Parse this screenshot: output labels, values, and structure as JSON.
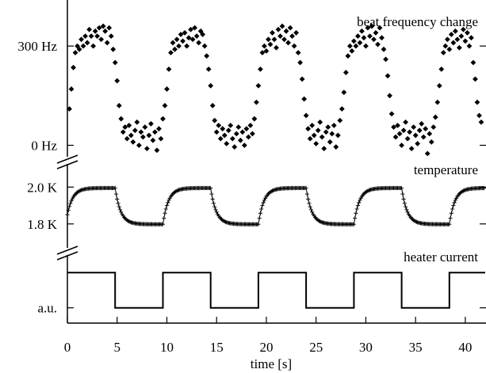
{
  "chart_data": {
    "type": "scatter",
    "xlabel": "time [s]",
    "xlim": [
      0,
      42
    ],
    "x_ticks": [
      0,
      5,
      10,
      15,
      20,
      25,
      30,
      35,
      40
    ],
    "x_tick_labels": [
      "0",
      "5",
      "10",
      "15",
      "20",
      "25",
      "30",
      "35",
      "40"
    ],
    "panels": [
      {
        "label": "beat frequency change",
        "unit": "Hz",
        "marker": "diamond",
        "ylim": [
          -30,
          420
        ],
        "y_ticks": [
          0,
          300
        ],
        "y_tick_labels": [
          "0 Hz",
          "300 Hz"
        ],
        "points": [
          [
            0.2,
            110
          ],
          [
            0.4,
            170
          ],
          [
            0.6,
            235
          ],
          [
            0.8,
            280
          ],
          [
            1.0,
            300
          ],
          [
            1.2,
            290
          ],
          [
            1.4,
            320
          ],
          [
            1.6,
            300
          ],
          [
            1.8,
            330
          ],
          [
            2.0,
            310
          ],
          [
            2.2,
            350
          ],
          [
            2.4,
            330
          ],
          [
            2.6,
            300
          ],
          [
            2.8,
            345
          ],
          [
            3.0,
            330
          ],
          [
            3.2,
            355
          ],
          [
            3.4,
            320
          ],
          [
            3.6,
            360
          ],
          [
            3.8,
            345
          ],
          [
            4.0,
            310
          ],
          [
            4.2,
            355
          ],
          [
            4.4,
            330
          ],
          [
            4.6,
            290
          ],
          [
            4.8,
            250
          ],
          [
            5.0,
            195
          ],
          [
            5.2,
            120
          ],
          [
            5.4,
            80
          ],
          [
            5.6,
            40
          ],
          [
            5.8,
            55
          ],
          [
            6.0,
            20
          ],
          [
            6.2,
            60
          ],
          [
            6.4,
            30
          ],
          [
            6.6,
            10
          ],
          [
            6.8,
            45
          ],
          [
            7.0,
            70
          ],
          [
            7.2,
            0
          ],
          [
            7.4,
            40
          ],
          [
            7.6,
            25
          ],
          [
            7.8,
            55
          ],
          [
            8.0,
            -10
          ],
          [
            8.2,
            30
          ],
          [
            8.4,
            65
          ],
          [
            8.6,
            15
          ],
          [
            8.8,
            40
          ],
          [
            9.0,
            -15
          ],
          [
            9.2,
            50
          ],
          [
            9.4,
            20
          ],
          [
            9.6,
            80
          ],
          [
            9.8,
            120
          ],
          [
            10.0,
            170
          ],
          [
            10.2,
            230
          ],
          [
            10.4,
            280
          ],
          [
            10.6,
            310
          ],
          [
            10.8,
            290
          ],
          [
            11.0,
            320
          ],
          [
            11.2,
            300
          ],
          [
            11.4,
            335
          ],
          [
            11.6,
            315
          ],
          [
            11.8,
            340
          ],
          [
            12.0,
            300
          ],
          [
            12.2,
            325
          ],
          [
            12.4,
            350
          ],
          [
            12.6,
            320
          ],
          [
            12.8,
            355
          ],
          [
            13.0,
            330
          ],
          [
            13.2,
            310
          ],
          [
            13.4,
            345
          ],
          [
            13.6,
            335
          ],
          [
            13.8,
            300
          ],
          [
            14.0,
            270
          ],
          [
            14.2,
            230
          ],
          [
            14.4,
            180
          ],
          [
            14.6,
            120
          ],
          [
            14.8,
            75
          ],
          [
            15.0,
            40
          ],
          [
            15.2,
            60
          ],
          [
            15.4,
            20
          ],
          [
            15.6,
            50
          ],
          [
            15.8,
            30
          ],
          [
            16.0,
            5
          ],
          [
            16.2,
            45
          ],
          [
            16.4,
            60
          ],
          [
            16.6,
            20
          ],
          [
            16.8,
            -5
          ],
          [
            17.0,
            35
          ],
          [
            17.2,
            55
          ],
          [
            17.4,
            15
          ],
          [
            17.6,
            40
          ],
          [
            17.8,
            0
          ],
          [
            18.0,
            50
          ],
          [
            18.2,
            25
          ],
          [
            18.4,
            60
          ],
          [
            18.6,
            35
          ],
          [
            18.8,
            80
          ],
          [
            19.0,
            130
          ],
          [
            19.2,
            180
          ],
          [
            19.4,
            230
          ],
          [
            19.6,
            280
          ],
          [
            19.8,
            300
          ],
          [
            20.0,
            285
          ],
          [
            20.2,
            320
          ],
          [
            20.4,
            305
          ],
          [
            20.6,
            340
          ],
          [
            20.8,
            320
          ],
          [
            21.0,
            295
          ],
          [
            21.2,
            350
          ],
          [
            21.4,
            330
          ],
          [
            21.6,
            360
          ],
          [
            21.8,
            320
          ],
          [
            22.0,
            345
          ],
          [
            22.2,
            310
          ],
          [
            22.4,
            355
          ],
          [
            22.6,
            330
          ],
          [
            22.8,
            300
          ],
          [
            23.0,
            340
          ],
          [
            23.2,
            280
          ],
          [
            23.4,
            250
          ],
          [
            23.6,
            200
          ],
          [
            23.8,
            140
          ],
          [
            24.0,
            90
          ],
          [
            24.2,
            50
          ],
          [
            24.4,
            20
          ],
          [
            24.6,
            60
          ],
          [
            24.8,
            30
          ],
          [
            25.0,
            5
          ],
          [
            25.2,
            45
          ],
          [
            25.4,
            70
          ],
          [
            25.6,
            25
          ],
          [
            25.8,
            -10
          ],
          [
            26.0,
            40
          ],
          [
            26.2,
            55
          ],
          [
            26.4,
            10
          ],
          [
            26.6,
            35
          ],
          [
            26.8,
            60
          ],
          [
            27.0,
            -5
          ],
          [
            27.2,
            30
          ],
          [
            27.4,
            75
          ],
          [
            27.6,
            110
          ],
          [
            27.8,
            160
          ],
          [
            28.0,
            220
          ],
          [
            28.2,
            270
          ],
          [
            28.4,
            300
          ],
          [
            28.6,
            285
          ],
          [
            28.8,
            315
          ],
          [
            29.0,
            300
          ],
          [
            29.2,
            330
          ],
          [
            29.4,
            310
          ],
          [
            29.6,
            345
          ],
          [
            29.8,
            325
          ],
          [
            30.0,
            300
          ],
          [
            30.2,
            355
          ],
          [
            30.4,
            330
          ],
          [
            30.6,
            360
          ],
          [
            30.8,
            320
          ],
          [
            31.0,
            340
          ],
          [
            31.2,
            305
          ],
          [
            31.4,
            355
          ],
          [
            31.6,
            325
          ],
          [
            31.8,
            290
          ],
          [
            32.0,
            260
          ],
          [
            32.2,
            210
          ],
          [
            32.4,
            150
          ],
          [
            32.6,
            95
          ],
          [
            32.8,
            55
          ],
          [
            33.0,
            25
          ],
          [
            33.2,
            60
          ],
          [
            33.4,
            35
          ],
          [
            33.6,
            0
          ],
          [
            33.8,
            45
          ],
          [
            34.0,
            70
          ],
          [
            34.2,
            20
          ],
          [
            34.4,
            40
          ],
          [
            34.6,
            -10
          ],
          [
            34.8,
            55
          ],
          [
            35.0,
            30
          ],
          [
            35.2,
            5
          ],
          [
            35.4,
            45
          ],
          [
            35.6,
            65
          ],
          [
            35.8,
            25
          ],
          [
            36.0,
            50
          ],
          [
            36.2,
            -25
          ],
          [
            36.4,
            35
          ],
          [
            36.6,
            10
          ],
          [
            36.8,
            55
          ],
          [
            37.0,
            85
          ],
          [
            37.2,
            130
          ],
          [
            37.4,
            180
          ],
          [
            37.6,
            230
          ],
          [
            37.8,
            280
          ],
          [
            38.0,
            300
          ],
          [
            38.2,
            320
          ],
          [
            38.4,
            290
          ],
          [
            38.6,
            335
          ],
          [
            38.8,
            310
          ],
          [
            39.0,
            345
          ],
          [
            39.2,
            320
          ],
          [
            39.4,
            295
          ],
          [
            39.6,
            330
          ],
          [
            39.8,
            350
          ],
          [
            40.0,
            315
          ],
          [
            40.2,
            340
          ],
          [
            40.4,
            300
          ],
          [
            40.6,
            325
          ],
          [
            40.8,
            250
          ],
          [
            41.0,
            200
          ],
          [
            41.2,
            130
          ],
          [
            41.4,
            90
          ],
          [
            41.6,
            70
          ]
        ]
      },
      {
        "label": "temperature",
        "unit": "K",
        "marker": "plus",
        "ylim": [
          1.7,
          2.1
        ],
        "y_ticks": [
          1.8,
          2.0
        ],
        "y_tick_labels": [
          "1.8 K",
          "2.0 K"
        ],
        "high": 1.995,
        "low": 1.798,
        "tau": 0.55,
        "step_times": [
          0.0,
          4.8,
          9.6,
          14.4,
          19.2,
          24.0,
          28.8,
          33.6,
          38.4
        ],
        "sample_step": 0.1,
        "points": [
          [
            0.0,
            1.85
          ]
        ]
      },
      {
        "label": "heater current",
        "unit": "a.u.",
        "marker": "line",
        "ylim": [
          -0.3,
          1.3
        ],
        "y_ticks": [
          0
        ],
        "y_tick_labels": [
          "a.u."
        ],
        "segments": [
          {
            "x0": 0.0,
            "x1": 4.8,
            "y": 1
          },
          {
            "x0": 4.8,
            "x1": 9.6,
            "y": 0
          },
          {
            "x0": 9.6,
            "x1": 14.4,
            "y": 1
          },
          {
            "x0": 14.4,
            "x1": 19.2,
            "y": 0
          },
          {
            "x0": 19.2,
            "x1": 24.0,
            "y": 1
          },
          {
            "x0": 24.0,
            "x1": 28.8,
            "y": 0
          },
          {
            "x0": 28.8,
            "x1": 33.6,
            "y": 1
          },
          {
            "x0": 33.6,
            "x1": 38.4,
            "y": 0
          },
          {
            "x0": 38.4,
            "x1": 42.0,
            "y": 1
          }
        ]
      }
    ]
  }
}
